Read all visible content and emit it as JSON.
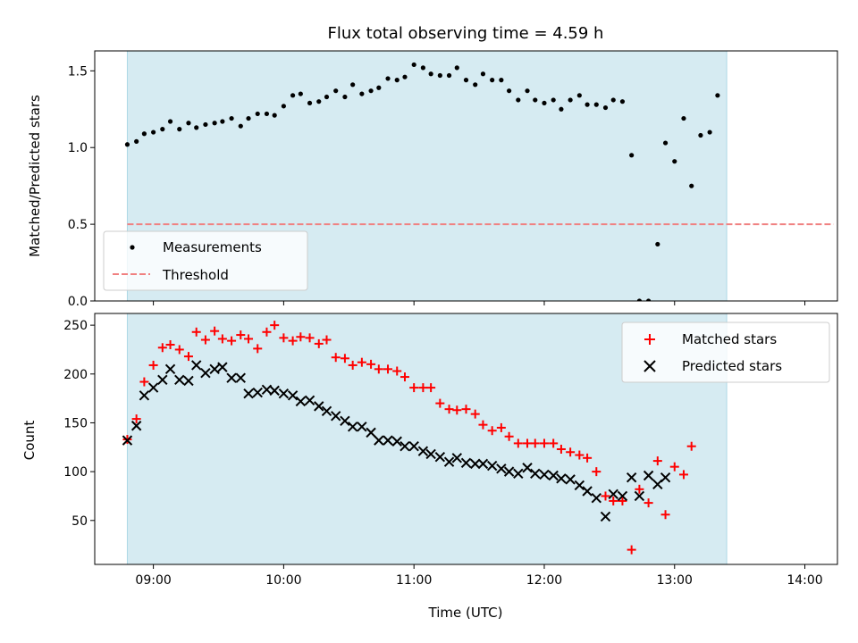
{
  "chart_data": [
    {
      "type": "scatter",
      "title": "Flux total observing time = 4.59 h",
      "xlabel": "",
      "ylabel": "Matched/Predicted stars",
      "xlim": [
        8.55,
        14.25
      ],
      "ylim": [
        0,
        1.63
      ],
      "yticks": [
        0,
        0.5,
        1.0,
        1.5
      ],
      "ytick_labels": [
        "0.0",
        "0.5",
        "1.0",
        "1.5"
      ],
      "xticks": [
        9,
        10,
        11,
        12,
        13,
        14
      ],
      "shaded_span": [
        8.8,
        13.4
      ],
      "shade_color": "#add8e6",
      "legend_position": "lower-left",
      "series": [
        {
          "name": "Measurements",
          "marker": "dot",
          "color": "#000000",
          "points": [
            [
              8.8,
              1.02
            ],
            [
              8.87,
              1.04
            ],
            [
              8.93,
              1.09
            ],
            [
              9.0,
              1.1
            ],
            [
              9.07,
              1.12
            ],
            [
              9.13,
              1.17
            ],
            [
              9.2,
              1.12
            ],
            [
              9.27,
              1.16
            ],
            [
              9.33,
              1.13
            ],
            [
              9.4,
              1.15
            ],
            [
              9.47,
              1.16
            ],
            [
              9.53,
              1.17
            ],
            [
              9.6,
              1.19
            ],
            [
              9.67,
              1.14
            ],
            [
              9.73,
              1.19
            ],
            [
              9.8,
              1.22
            ],
            [
              9.87,
              1.22
            ],
            [
              9.93,
              1.21
            ],
            [
              10.0,
              1.27
            ],
            [
              10.07,
              1.34
            ],
            [
              10.13,
              1.35
            ],
            [
              10.2,
              1.29
            ],
            [
              10.27,
              1.3
            ],
            [
              10.33,
              1.33
            ],
            [
              10.4,
              1.37
            ],
            [
              10.47,
              1.33
            ],
            [
              10.53,
              1.41
            ],
            [
              10.6,
              1.35
            ],
            [
              10.67,
              1.37
            ],
            [
              10.73,
              1.39
            ],
            [
              10.8,
              1.45
            ],
            [
              10.87,
              1.44
            ],
            [
              10.93,
              1.46
            ],
            [
              11.0,
              1.54
            ],
            [
              11.07,
              1.52
            ],
            [
              11.13,
              1.48
            ],
            [
              11.2,
              1.47
            ],
            [
              11.27,
              1.47
            ],
            [
              11.33,
              1.52
            ],
            [
              11.4,
              1.44
            ],
            [
              11.47,
              1.41
            ],
            [
              11.53,
              1.48
            ],
            [
              11.6,
              1.44
            ],
            [
              11.67,
              1.44
            ],
            [
              11.73,
              1.37
            ],
            [
              11.8,
              1.31
            ],
            [
              11.87,
              1.37
            ],
            [
              11.93,
              1.31
            ],
            [
              12.0,
              1.29
            ],
            [
              12.07,
              1.31
            ],
            [
              12.13,
              1.25
            ],
            [
              12.2,
              1.31
            ],
            [
              12.27,
              1.34
            ],
            [
              12.33,
              1.28
            ],
            [
              12.4,
              1.28
            ],
            [
              12.47,
              1.26
            ],
            [
              12.53,
              1.31
            ],
            [
              12.6,
              1.3
            ],
            [
              12.67,
              0.95
            ],
            [
              12.73,
              0.0
            ],
            [
              12.8,
              0.0
            ],
            [
              12.87,
              0.37
            ],
            [
              12.93,
              1.03
            ],
            [
              13.0,
              0.91
            ],
            [
              13.07,
              1.19
            ],
            [
              13.13,
              0.75
            ],
            [
              13.2,
              1.08
            ],
            [
              13.27,
              1.1
            ],
            [
              13.33,
              1.34
            ]
          ]
        },
        {
          "name": "Threshold",
          "marker": "dashed-line",
          "color": "#f08080",
          "x": [
            8.8,
            14.22
          ],
          "y": [
            0.5,
            0.5
          ]
        }
      ]
    },
    {
      "type": "scatter",
      "title": "",
      "xlabel": "Time (UTC)",
      "ylabel": "Count",
      "xlim": [
        8.55,
        14.25
      ],
      "ylim": [
        5,
        262
      ],
      "yticks": [
        50,
        100,
        150,
        200,
        250
      ],
      "ytick_labels": [
        "50",
        "100",
        "150",
        "200",
        "250"
      ],
      "xticks": [
        9,
        10,
        11,
        12,
        13,
        14
      ],
      "xtick_labels": [
        "09:00",
        "10:00",
        "11:00",
        "12:00",
        "13:00",
        "14:00"
      ],
      "shaded_span": [
        8.8,
        13.4
      ],
      "shade_color": "#add8e6",
      "legend_position": "top-right",
      "series": [
        {
          "name": "Matched stars",
          "marker": "plus",
          "color": "#ff0000",
          "points": [
            [
              8.8,
              133
            ],
            [
              8.87,
              154
            ],
            [
              8.93,
              192
            ],
            [
              9.0,
              209
            ],
            [
              9.07,
              227
            ],
            [
              9.13,
              230
            ],
            [
              9.2,
              225
            ],
            [
              9.27,
              218
            ],
            [
              9.33,
              243
            ],
            [
              9.4,
              235
            ],
            [
              9.47,
              244
            ],
            [
              9.53,
              236
            ],
            [
              9.6,
              234
            ],
            [
              9.67,
              240
            ],
            [
              9.73,
              236
            ],
            [
              9.8,
              226
            ],
            [
              9.87,
              243
            ],
            [
              9.93,
              250
            ],
            [
              10.0,
              237
            ],
            [
              10.07,
              234
            ],
            [
              10.13,
              238
            ],
            [
              10.2,
              237
            ],
            [
              10.27,
              231
            ],
            [
              10.33,
              235
            ],
            [
              10.4,
              217
            ],
            [
              10.47,
              216
            ],
            [
              10.53,
              209
            ],
            [
              10.6,
              212
            ],
            [
              10.67,
              210
            ],
            [
              10.73,
              205
            ],
            [
              10.8,
              205
            ],
            [
              10.87,
              203
            ],
            [
              10.93,
              197
            ],
            [
              11.0,
              186
            ],
            [
              11.07,
              186
            ],
            [
              11.13,
              186
            ],
            [
              11.2,
              170
            ],
            [
              11.27,
              164
            ],
            [
              11.33,
              163
            ],
            [
              11.4,
              164
            ],
            [
              11.47,
              159
            ],
            [
              11.53,
              148
            ],
            [
              11.6,
              142
            ],
            [
              11.67,
              145
            ],
            [
              11.73,
              136
            ],
            [
              11.8,
              129
            ],
            [
              11.87,
              129
            ],
            [
              11.93,
              129
            ],
            [
              12.0,
              129
            ],
            [
              12.07,
              129
            ],
            [
              12.13,
              123
            ],
            [
              12.2,
              120
            ],
            [
              12.27,
              117
            ],
            [
              12.33,
              114
            ],
            [
              12.4,
              100
            ],
            [
              12.47,
              75
            ],
            [
              12.53,
              70
            ],
            [
              12.6,
              70
            ],
            [
              12.67,
              20
            ],
            [
              12.73,
              82
            ],
            [
              12.8,
              68
            ],
            [
              12.87,
              111
            ],
            [
              12.93,
              56
            ],
            [
              13.0,
              105
            ],
            [
              13.07,
              97
            ],
            [
              13.13,
              126
            ]
          ]
        },
        {
          "name": "Predicted stars",
          "marker": "x",
          "color": "#000000",
          "points": [
            [
              8.8,
              132
            ],
            [
              8.87,
              147
            ],
            [
              8.93,
              178
            ],
            [
              9.0,
              186
            ],
            [
              9.07,
              194
            ],
            [
              9.13,
              205
            ],
            [
              9.2,
              194
            ],
            [
              9.27,
              193
            ],
            [
              9.33,
              209
            ],
            [
              9.4,
              201
            ],
            [
              9.47,
              205
            ],
            [
              9.53,
              207
            ],
            [
              9.6,
              196
            ],
            [
              9.67,
              196
            ],
            [
              9.73,
              180
            ],
            [
              9.8,
              181
            ],
            [
              9.87,
              184
            ],
            [
              9.93,
              183
            ],
            [
              10.0,
              180
            ],
            [
              10.07,
              178
            ],
            [
              10.13,
              172
            ],
            [
              10.2,
              173
            ],
            [
              10.27,
              167
            ],
            [
              10.33,
              162
            ],
            [
              10.4,
              157
            ],
            [
              10.47,
              152
            ],
            [
              10.53,
              146
            ],
            [
              10.6,
              146
            ],
            [
              10.67,
              140
            ],
            [
              10.73,
              132
            ],
            [
              10.8,
              132
            ],
            [
              10.87,
              131
            ],
            [
              10.93,
              126
            ],
            [
              11.0,
              126
            ],
            [
              11.07,
              121
            ],
            [
              11.13,
              118
            ],
            [
              11.2,
              115
            ],
            [
              11.27,
              110
            ],
            [
              11.33,
              114
            ],
            [
              11.4,
              109
            ],
            [
              11.47,
              108
            ],
            [
              11.53,
              108
            ],
            [
              11.6,
              106
            ],
            [
              11.67,
              103
            ],
            [
              11.73,
              100
            ],
            [
              11.8,
              98
            ],
            [
              11.87,
              104
            ],
            [
              11.93,
              98
            ],
            [
              12.0,
              97
            ],
            [
              12.07,
              96
            ],
            [
              12.13,
              93
            ],
            [
              12.2,
              92
            ],
            [
              12.27,
              86
            ],
            [
              12.33,
              80
            ],
            [
              12.4,
              73
            ],
            [
              12.47,
              54
            ],
            [
              12.53,
              77
            ],
            [
              12.6,
              75
            ],
            [
              12.67,
              94
            ],
            [
              12.73,
              75
            ],
            [
              12.8,
              96
            ],
            [
              12.87,
              87
            ],
            [
              12.93,
              94
            ]
          ]
        }
      ]
    }
  ]
}
